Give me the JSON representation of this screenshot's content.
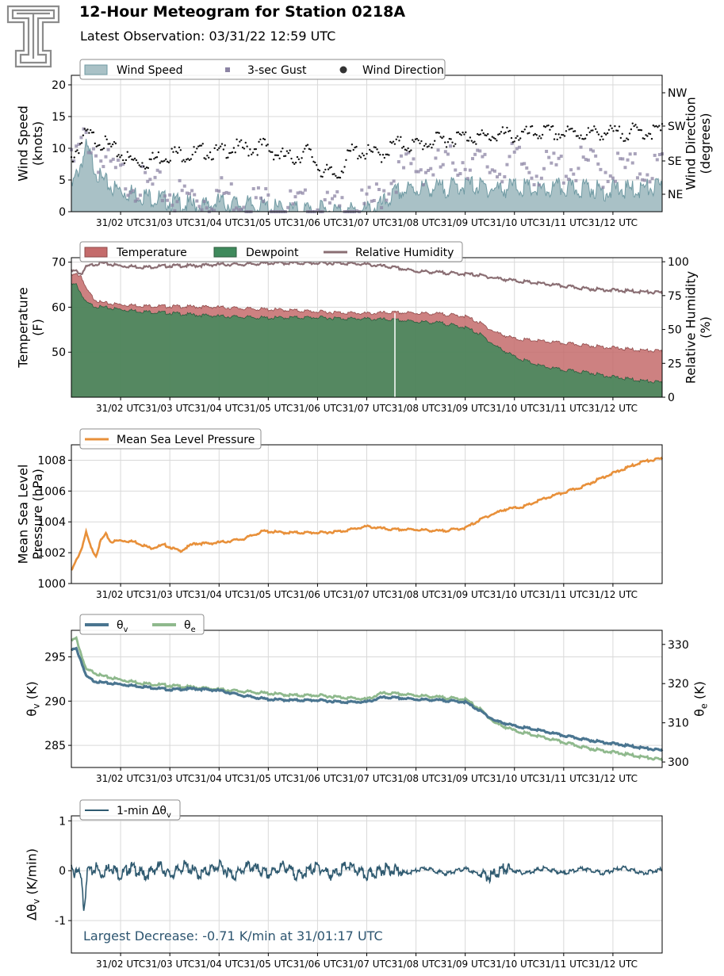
{
  "header": {
    "title": "12-Hour Meteogram for Station 0218A",
    "subtitle": "Latest Observation: 03/31/22 12:59 UTC",
    "logo": "texas-tech-double-t-logo"
  },
  "colors": {
    "wind_speed": "#6f9aa3",
    "wind_speed_fill": "#a9c1c6",
    "gust": "#8c84a4",
    "wind_dir": "#111111",
    "temperature": "#c46b6b",
    "dewpoint": "#3f8a5c",
    "rh": "#8a6e73",
    "pressure": "#e8903a",
    "theta_v": "#4a7590",
    "theta_e": "#8fb98d",
    "dtheta": "#2f5a70",
    "annotation": "#2d5570"
  },
  "x_ticks": [
    "31/02 UTC",
    "31/03 UTC",
    "31/04 UTC",
    "31/05 UTC",
    "31/06 UTC",
    "31/07 UTC",
    "31/08 UTC",
    "31/09 UTC",
    "31/10 UTC",
    "31/11 UTC",
    "31/12 UTC"
  ],
  "chart_data": [
    {
      "type": "area",
      "name_key": "wind",
      "legend": [
        "Wind Speed",
        "3-sec Gust",
        "Wind Direction"
      ],
      "ylabel": [
        "Wind Speed",
        "(knots)"
      ],
      "ylabel_right": [
        "Wind Direction",
        "(degrees)"
      ],
      "yticks": [
        "0",
        "5",
        "10",
        "15",
        "20"
      ],
      "ylim": [
        0,
        21.5
      ],
      "yticks_right": [
        "NE",
        "SE",
        "SW",
        "NW"
      ],
      "ylim_right": [
        "NE",
        "NW"
      ],
      "x_hours": [
        1.0,
        13.0
      ],
      "series": [
        {
          "name": "Wind Speed",
          "x": [
            1.0,
            1.3,
            1.6,
            1.9,
            2.2,
            2.5,
            2.8,
            3.1,
            3.4,
            3.7,
            4.0,
            4.3,
            4.6,
            4.9,
            5.2,
            5.5,
            5.8,
            6.1,
            6.4,
            6.7,
            7.0,
            7.3,
            7.6,
            7.9,
            8.2,
            8.5,
            8.8,
            9.1,
            9.4,
            9.7,
            10.0,
            10.3,
            10.6,
            10.9,
            11.2,
            11.5,
            11.8,
            12.1,
            12.4,
            12.7,
            13.0
          ],
          "values": [
            3.5,
            10,
            5,
            3.5,
            3,
            2.5,
            2,
            1.5,
            1,
            0.8,
            1.5,
            1.2,
            1,
            0.8,
            0.4,
            0.3,
            0.3,
            0.2,
            0.1,
            0.1,
            0.2,
            1,
            3,
            3.5,
            3.8,
            3.6,
            4,
            4.2,
            3.8,
            3.5,
            4,
            3.6,
            3.2,
            3.8,
            3.5,
            3.9,
            3.2,
            3.6,
            3.4,
            3.7,
            3.8
          ]
        },
        {
          "name": "3-sec Gust",
          "x": [
            1.0,
            1.3,
            1.6,
            1.9,
            2.2,
            2.5,
            2.8,
            3.1,
            3.4,
            3.7,
            4.0,
            4.3,
            4.6,
            4.9,
            5.2,
            5.5,
            5.8,
            6.1,
            6.4,
            6.7,
            7.0,
            7.3,
            7.6,
            7.9,
            8.2,
            8.5,
            8.8,
            9.1,
            9.4,
            9.7,
            10.0,
            10.3,
            10.6,
            10.9,
            11.2,
            11.5,
            11.8,
            12.1,
            12.4,
            12.7,
            13.0
          ],
          "values": [
            7,
            12,
            8,
            6,
            5,
            4,
            3.5,
            2.5,
            2.5,
            2,
            3,
            2.5,
            2,
            1.5,
            1,
            0.8,
            0.6,
            0.4,
            0.3,
            0.3,
            0.5,
            3,
            6,
            7,
            7,
            7,
            8,
            8,
            7,
            7,
            8,
            7,
            6.5,
            7,
            7,
            7.5,
            6.5,
            7,
            6.5,
            7,
            7
          ]
        },
        {
          "name": "Wind Direction",
          "x": [
            1.0,
            1.3,
            1.6,
            1.9,
            2.2,
            2.5,
            2.8,
            3.1,
            3.4,
            3.7,
            4.0,
            4.3,
            4.6,
            4.9,
            5.2,
            5.5,
            5.8,
            6.1,
            6.4,
            6.7,
            7.0,
            7.3,
            7.6,
            7.9,
            8.2,
            8.5,
            8.8,
            9.1,
            9.4,
            9.7,
            10.0,
            10.3,
            10.6,
            10.9,
            11.2,
            11.5,
            11.8,
            12.1,
            12.4,
            12.7,
            13.0
          ],
          "values": [
            140,
            205,
            185,
            160,
            135,
            130,
            145,
            155,
            150,
            160,
            155,
            170,
            165,
            175,
            150,
            140,
            160,
            105,
            95,
            160,
            155,
            150,
            180,
            175,
            180,
            190,
            195,
            200,
            195,
            205,
            200,
            205,
            210,
            205,
            208,
            205,
            210,
            205,
            212,
            210,
            215
          ]
        }
      ]
    },
    {
      "type": "area",
      "name_key": "temp",
      "legend": [
        "Temperature",
        "Dewpoint",
        "Relative Humidity"
      ],
      "ylabel": [
        "Temperature",
        "(F)"
      ],
      "ylabel_right": [
        "Relative Humidity",
        "(%)"
      ],
      "yticks": [
        "50",
        "60",
        "70"
      ],
      "ylim": [
        40,
        71
      ],
      "yticks_right": [
        "0",
        "25",
        "50",
        "75",
        "100"
      ],
      "ylim_right": [
        0,
        103
      ],
      "x_hours": [
        1.0,
        13.0
      ],
      "series": [
        {
          "name": "Temperature",
          "x": [
            1.0,
            1.1,
            1.2,
            1.3,
            1.45,
            1.6,
            2.0,
            2.5,
            3.0,
            3.5,
            4.0,
            4.5,
            5.0,
            5.5,
            6.0,
            6.5,
            7.0,
            7.5,
            8.0,
            8.5,
            9.0,
            9.3,
            9.6,
            10.0,
            10.5,
            11.0,
            11.5,
            12.0,
            12.5,
            13.0
          ],
          "values": [
            67,
            67.3,
            67,
            64,
            62,
            61,
            60.6,
            60.3,
            60.2,
            60.1,
            60.0,
            59.7,
            59.5,
            59.3,
            59.0,
            58.8,
            58.6,
            58.8,
            58.7,
            58.5,
            58.0,
            56.5,
            54.5,
            53.0,
            52.5,
            52.0,
            51.5,
            51.0,
            50.5,
            50.2
          ]
        },
        {
          "name": "Dewpoint",
          "x": [
            1.0,
            1.1,
            1.2,
            1.3,
            1.45,
            1.6,
            2.0,
            2.5,
            3.0,
            3.5,
            4.0,
            4.5,
            5.0,
            5.5,
            6.0,
            6.5,
            7.0,
            7.5,
            8.0,
            8.5,
            9.0,
            9.3,
            9.6,
            10.0,
            10.5,
            11.0,
            11.5,
            12.0,
            12.5,
            13.0
          ],
          "values": [
            65,
            65,
            63,
            61,
            60.3,
            60.0,
            59.5,
            59.0,
            58.7,
            58.3,
            58.0,
            57.8,
            57.6,
            57.7,
            57.7,
            57.5,
            57.4,
            57.2,
            56.8,
            56.5,
            55.5,
            54.0,
            51.5,
            49.0,
            47.0,
            46.0,
            45.5,
            44.5,
            43.8,
            43.2
          ]
        },
        {
          "name": "Relative Humidity",
          "x": [
            1.0,
            1.1,
            1.2,
            1.3,
            1.45,
            1.6,
            2.0,
            2.5,
            3.0,
            3.5,
            4.0,
            4.5,
            5.0,
            5.5,
            6.0,
            6.5,
            7.0,
            7.5,
            8.0,
            8.5,
            9.0,
            9.3,
            9.6,
            10.0,
            10.5,
            11.0,
            11.5,
            12.0,
            12.5,
            13.0
          ],
          "values": [
            93,
            93,
            91,
            96,
            98,
            99,
            97,
            96,
            97,
            97,
            98,
            98,
            99,
            99,
            99,
            99,
            98,
            96,
            93,
            92,
            91,
            90,
            88,
            86,
            84,
            82,
            80,
            79,
            78,
            77
          ]
        }
      ]
    },
    {
      "type": "line",
      "name_key": "pressure",
      "legend": [
        "Mean Sea Level Pressure"
      ],
      "ylabel": [
        "Mean Sea Level",
        "Pressure (hPa)"
      ],
      "yticks": [
        "1000",
        "1002",
        "1004",
        "1006",
        "1008"
      ],
      "ylim": [
        1000,
        1009
      ],
      "x_hours": [
        1.0,
        13.0
      ],
      "series": [
        {
          "name": "Mean Sea Level Pressure",
          "x": [
            1.0,
            1.1,
            1.2,
            1.3,
            1.4,
            1.5,
            1.6,
            1.7,
            1.8,
            2.0,
            2.3,
            2.6,
            2.9,
            3.2,
            3.5,
            3.8,
            4.1,
            4.5,
            4.9,
            5.3,
            5.7,
            6.1,
            6.5,
            7.0,
            7.5,
            8.0,
            8.5,
            9.0,
            9.4,
            9.8,
            10.2,
            10.6,
            11.0,
            11.4,
            11.8,
            12.2,
            12.6,
            13.0
          ],
          "values": [
            1000.8,
            1001.5,
            1002.2,
            1003.3,
            1002.3,
            1001.8,
            1002.8,
            1003.2,
            1002.7,
            1002.8,
            1002.7,
            1002.3,
            1002.5,
            1002.1,
            1002.6,
            1002.6,
            1002.7,
            1002.9,
            1003.4,
            1003.3,
            1003.3,
            1003.3,
            1003.4,
            1003.7,
            1003.5,
            1003.5,
            1003.4,
            1003.6,
            1004.3,
            1004.8,
            1005.0,
            1005.5,
            1005.9,
            1006.3,
            1006.9,
            1007.4,
            1007.9,
            1008.1
          ]
        }
      ]
    },
    {
      "type": "line",
      "name_key": "theta",
      "legend": [
        "θv",
        "θe"
      ],
      "ylabel": [
        "θv (K)"
      ],
      "ylabel_right": [
        "θe (K)"
      ],
      "yticks": [
        "285",
        "290",
        "295"
      ],
      "ylim": [
        282.5,
        298.0
      ],
      "yticks_right": [
        "300",
        "310",
        "320",
        "330"
      ],
      "ylim_right": [
        298.6,
        333.6
      ],
      "x_hours": [
        1.0,
        13.0
      ],
      "series": [
        {
          "name": "θv",
          "x": [
            1.0,
            1.1,
            1.2,
            1.3,
            1.45,
            1.6,
            2.0,
            2.5,
            3.0,
            3.5,
            4.0,
            4.5,
            5.0,
            5.5,
            6.0,
            6.5,
            7.0,
            7.3,
            7.5,
            8.0,
            8.5,
            9.0,
            9.3,
            9.6,
            10.0,
            10.5,
            11.0,
            11.5,
            12.0,
            12.5,
            13.0
          ],
          "values": [
            295.8,
            295.9,
            294.5,
            292.8,
            292.3,
            292.1,
            291.9,
            291.6,
            291.3,
            291.4,
            291.2,
            290.6,
            290.2,
            290.1,
            290.1,
            289.9,
            289.9,
            290.4,
            290.4,
            290.2,
            290.1,
            289.9,
            288.9,
            287.8,
            287.2,
            286.7,
            286.1,
            285.6,
            285.2,
            284.8,
            284.4
          ]
        },
        {
          "name": "θe",
          "x": [
            1.0,
            1.1,
            1.2,
            1.3,
            1.45,
            1.6,
            2.0,
            2.5,
            3.0,
            3.5,
            4.0,
            4.5,
            5.0,
            5.5,
            6.0,
            6.5,
            7.0,
            7.3,
            7.5,
            8.0,
            8.5,
            9.0,
            9.3,
            9.6,
            10.0,
            10.5,
            11.0,
            11.5,
            12.0,
            12.5,
            13.0
          ],
          "values": [
            331.0,
            331.5,
            327.5,
            323.5,
            323.0,
            322.0,
            321.0,
            320.0,
            319.5,
            319.0,
            318.5,
            318.0,
            317.5,
            317.0,
            317.0,
            316.5,
            316.0,
            317.5,
            317.5,
            317.0,
            316.5,
            316.0,
            313.5,
            310.0,
            308.0,
            306.5,
            305.0,
            303.5,
            302.5,
            301.5,
            300.5
          ]
        }
      ]
    },
    {
      "type": "line",
      "name_key": "dtheta",
      "legend": [
        "1-min Δθv"
      ],
      "ylabel": [
        "Δθv (K/min)"
      ],
      "yticks": [
        "-1",
        "0",
        "1"
      ],
      "ylim": [
        -1.65,
        1.1
      ],
      "x_hours": [
        1.0,
        13.0
      ],
      "annotation": "Largest Decrease: -0.71 K/min at 31/01:17 UTC",
      "series": [
        {
          "name": "1-min Δθv",
          "x": [
            1.0,
            1.05,
            1.1,
            1.15,
            1.2,
            1.25,
            1.28,
            1.3,
            1.35,
            1.4,
            1.5,
            1.6,
            1.8,
            2.0,
            2.2,
            2.5,
            2.8,
            3.0,
            3.3,
            3.6,
            4.0,
            4.3,
            4.6,
            5.0,
            5.3,
            5.6,
            6.0,
            6.3,
            6.6,
            7.0,
            7.4,
            7.8,
            8.2,
            8.6,
            9.0,
            9.3,
            9.5,
            9.8,
            10.2,
            10.6,
            11.0,
            11.4,
            11.8,
            12.2,
            12.6,
            13.0
          ],
          "values": [
            0.05,
            -0.1,
            0.08,
            -0.05,
            -0.2,
            -0.71,
            -0.55,
            -0.2,
            0.05,
            -0.05,
            0.08,
            -0.08,
            0.1,
            -0.1,
            0.08,
            -0.1,
            0.1,
            -0.1,
            0.1,
            -0.08,
            0.1,
            -0.1,
            0.1,
            -0.08,
            0.1,
            -0.1,
            0.08,
            -0.1,
            0.1,
            -0.1,
            0.05,
            -0.05,
            0.05,
            -0.06,
            0.04,
            -0.08,
            -0.12,
            0.05,
            -0.05,
            0.05,
            -0.05,
            0.05,
            -0.05,
            0.06,
            -0.05,
            0.03
          ]
        }
      ]
    }
  ]
}
